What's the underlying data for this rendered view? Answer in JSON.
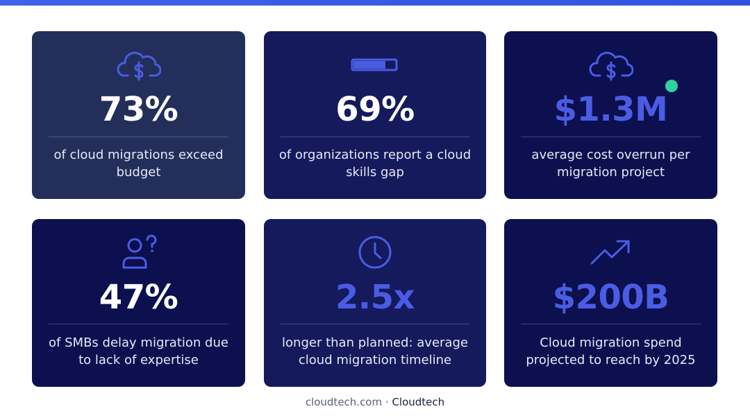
{
  "cards": [
    {
      "value": "73%",
      "description": "of cloud migrations exceed budget"
    },
    {
      "value": "69%",
      "description": "of organizations report a cloud skills gap"
    },
    {
      "value": "$1.3M",
      "description": "average cost overrun per migration project"
    },
    {
      "value": "47%",
      "description": "of SMBs delay migration due to lack of expertise"
    },
    {
      "value": "2.5x",
      "description": "longer than planned: average cloud migration timeline"
    },
    {
      "value": "$200B",
      "description": "Cloud migration spend projected to reach by 2025"
    }
  ],
  "footer": {
    "domain": "cloudtech.com",
    "separator": "·",
    "brand": "Cloudtech"
  }
}
